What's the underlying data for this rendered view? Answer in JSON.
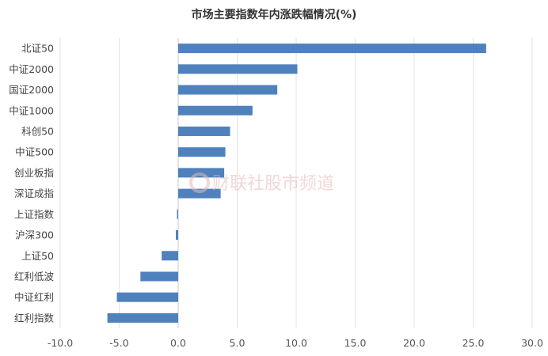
{
  "chart_data": {
    "type": "bar",
    "orientation": "horizontal",
    "title": "市场主要指数年内涨跌幅情况(%)",
    "categories": [
      "北证50",
      "中证2000",
      "国证2000",
      "中证1000",
      "科创50",
      "中证500",
      "创业板指",
      "深证成指",
      "上证指数",
      "沪深300",
      "上证50",
      "红利低波",
      "中证红利",
      "红利指数"
    ],
    "values": [
      26.1,
      10.1,
      8.4,
      6.3,
      4.4,
      4.0,
      3.9,
      3.6,
      -0.1,
      -0.2,
      -1.4,
      -3.2,
      -5.2,
      -6.0
    ],
    "xlim": [
      -10,
      30
    ],
    "xticks": [
      "-10.0",
      "-5.0",
      "0.0",
      "5.0",
      "10.0",
      "15.0",
      "20.0",
      "25.0",
      "30.0"
    ],
    "xlabel": "",
    "ylabel": "",
    "grid": "vertical",
    "bar_color": "#4f81bd"
  },
  "watermark": "财联社股市频道"
}
